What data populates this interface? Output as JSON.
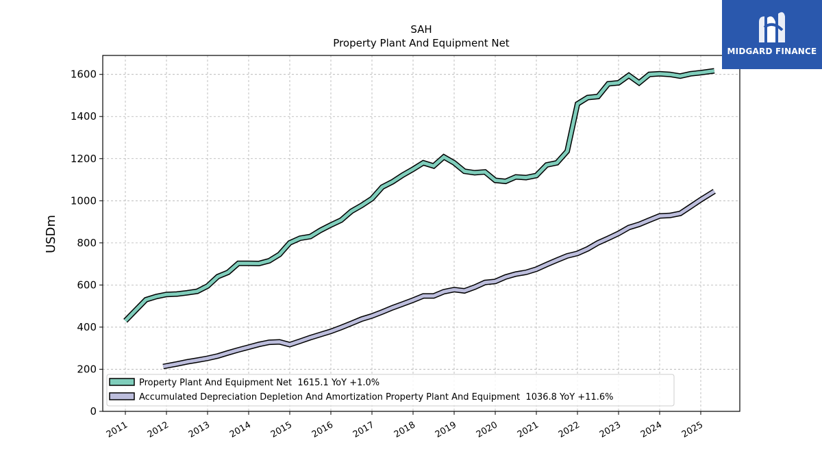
{
  "chart_data": {
    "type": "line",
    "title": "SAH",
    "subtitle": "Property Plant And Equipment Net",
    "ylabel": "USDm",
    "xlabel": "",
    "ylim": [
      0,
      1690
    ],
    "yticks": [
      0,
      200,
      400,
      600,
      800,
      1000,
      1200,
      1400,
      1600
    ],
    "xticks": [
      "2011",
      "2012",
      "2013",
      "2014",
      "2015",
      "2016",
      "2017",
      "2018",
      "2019",
      "2020",
      "2021",
      "2022",
      "2023",
      "2024",
      "2025"
    ],
    "grid": true,
    "legend_position": "lower-left",
    "series": [
      {
        "name": "Property Plant And Equipment Net",
        "legend_label": "Property Plant And Equipment Net  1615.1 YoY +1.0%",
        "color": "#7fcdbb",
        "points": [
          [
            2011.0,
            430
          ],
          [
            2011.25,
            480
          ],
          [
            2011.5,
            530
          ],
          [
            2011.75,
            545
          ],
          [
            2012.0,
            555
          ],
          [
            2012.25,
            557
          ],
          [
            2012.5,
            563
          ],
          [
            2012.75,
            570
          ],
          [
            2013.0,
            595
          ],
          [
            2013.25,
            640
          ],
          [
            2013.5,
            660
          ],
          [
            2013.75,
            703
          ],
          [
            2014.0,
            703
          ],
          [
            2014.25,
            702
          ],
          [
            2014.5,
            715
          ],
          [
            2014.75,
            745
          ],
          [
            2015.0,
            800
          ],
          [
            2015.25,
            822
          ],
          [
            2015.5,
            830
          ],
          [
            2015.75,
            860
          ],
          [
            2016.0,
            885
          ],
          [
            2016.25,
            908
          ],
          [
            2016.5,
            950
          ],
          [
            2016.75,
            978
          ],
          [
            2017.0,
            1010
          ],
          [
            2017.25,
            1065
          ],
          [
            2017.5,
            1090
          ],
          [
            2017.75,
            1122
          ],
          [
            2018.0,
            1150
          ],
          [
            2018.25,
            1180
          ],
          [
            2018.5,
            1165
          ],
          [
            2018.75,
            1208
          ],
          [
            2019.0,
            1180
          ],
          [
            2019.25,
            1140
          ],
          [
            2019.5,
            1133
          ],
          [
            2019.75,
            1137
          ],
          [
            2020.0,
            1097
          ],
          [
            2020.25,
            1092
          ],
          [
            2020.5,
            1113
          ],
          [
            2020.75,
            1110
          ],
          [
            2021.0,
            1120
          ],
          [
            2021.25,
            1170
          ],
          [
            2021.5,
            1180
          ],
          [
            2021.75,
            1235
          ],
          [
            2022.0,
            1460
          ],
          [
            2022.25,
            1490
          ],
          [
            2022.5,
            1495
          ],
          [
            2022.75,
            1555
          ],
          [
            2023.0,
            1560
          ],
          [
            2023.25,
            1595
          ],
          [
            2023.5,
            1560
          ],
          [
            2023.75,
            1600
          ],
          [
            2024.0,
            1603
          ],
          [
            2024.25,
            1600
          ],
          [
            2024.5,
            1592
          ],
          [
            2024.75,
            1603
          ],
          [
            2025.0,
            1608
          ],
          [
            2025.33,
            1617
          ]
        ]
      },
      {
        "name": "Accumulated Depreciation Depletion And Amortization Property Plant And Equipment",
        "legend_label": "Accumulated Depreciation Depletion And Amortization Property Plant And Equipment  1036.8 YoY +11.6%",
        "color": "#bcbddc",
        "points": [
          [
            2011.92,
            213
          ],
          [
            2012.25,
            225
          ],
          [
            2012.5,
            235
          ],
          [
            2012.75,
            243
          ],
          [
            2013.0,
            252
          ],
          [
            2013.25,
            263
          ],
          [
            2013.5,
            278
          ],
          [
            2013.75,
            292
          ],
          [
            2014.0,
            305
          ],
          [
            2014.25,
            318
          ],
          [
            2014.5,
            328
          ],
          [
            2014.75,
            330
          ],
          [
            2015.0,
            317
          ],
          [
            2015.25,
            333
          ],
          [
            2015.5,
            350
          ],
          [
            2015.75,
            365
          ],
          [
            2016.0,
            380
          ],
          [
            2016.25,
            398
          ],
          [
            2016.5,
            418
          ],
          [
            2016.75,
            438
          ],
          [
            2017.0,
            453
          ],
          [
            2017.25,
            472
          ],
          [
            2017.5,
            492
          ],
          [
            2017.75,
            510
          ],
          [
            2018.0,
            528
          ],
          [
            2018.25,
            548
          ],
          [
            2018.5,
            548
          ],
          [
            2018.75,
            568
          ],
          [
            2019.0,
            578
          ],
          [
            2019.25,
            572
          ],
          [
            2019.5,
            590
          ],
          [
            2019.75,
            612
          ],
          [
            2020.0,
            617
          ],
          [
            2020.25,
            638
          ],
          [
            2020.5,
            652
          ],
          [
            2020.75,
            660
          ],
          [
            2021.0,
            675
          ],
          [
            2021.25,
            697
          ],
          [
            2021.5,
            718
          ],
          [
            2021.75,
            738
          ],
          [
            2022.0,
            750
          ],
          [
            2022.25,
            772
          ],
          [
            2022.5,
            800
          ],
          [
            2022.75,
            822
          ],
          [
            2023.0,
            845
          ],
          [
            2023.25,
            873
          ],
          [
            2023.5,
            888
          ],
          [
            2023.75,
            908
          ],
          [
            2024.0,
            928
          ],
          [
            2024.25,
            930
          ],
          [
            2024.5,
            940
          ],
          [
            2024.75,
            972
          ],
          [
            2025.0,
            1005
          ],
          [
            2025.33,
            1045
          ]
        ]
      }
    ]
  },
  "logo": {
    "text": "MIDGARD FINANCE"
  }
}
